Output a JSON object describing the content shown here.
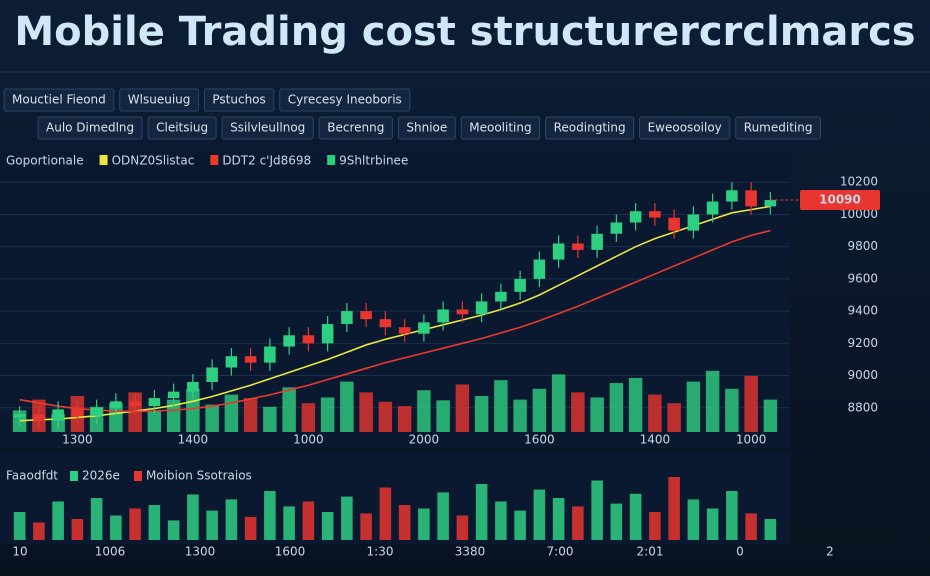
{
  "header": {
    "title": "Mobile Trading cost structurercrclmarcs"
  },
  "toolbar": {
    "row1": [
      "Mouctiel Fieond",
      "Wlsueuiug",
      "Pstuchos",
      "Cyrecesy Ineoboris"
    ],
    "row2": [
      "Aulo Dimedlng",
      "Cleitsiug",
      "Ssilvleullnog",
      "Becrenng",
      "Shnioe",
      "Meooliting",
      "Reodingting",
      "Eweoosoiloy",
      "Rumediting"
    ]
  },
  "chart_data": {
    "type": "candlestick",
    "legend_label": "Goportionale",
    "categories": [
      null,
      null,
      null,
      "1300",
      null,
      null,
      null,
      null,
      null,
      "1400",
      null,
      null,
      null,
      null,
      null,
      "1000",
      null,
      null,
      null,
      null,
      null,
      "2000",
      null,
      null,
      null,
      null,
      null,
      "1600",
      null,
      null,
      null,
      null,
      null,
      "1400",
      null,
      null,
      null,
      null,
      "1000",
      null
    ],
    "open": [
      8740,
      8760,
      8720,
      8790,
      8750,
      8800,
      8840,
      8810,
      8860,
      8900,
      8960,
      9050,
      9120,
      9080,
      9180,
      9250,
      9200,
      9320,
      9400,
      9350,
      9300,
      9260,
      9330,
      9410,
      9380,
      9460,
      9520,
      9600,
      9720,
      9820,
      9780,
      9880,
      9950,
      10020,
      9980,
      9900,
      10000,
      10080,
      10150,
      10050
    ],
    "high": [
      8810,
      8810,
      8840,
      8840,
      8850,
      8890,
      8890,
      8910,
      8950,
      9010,
      9100,
      9170,
      9170,
      9230,
      9300,
      9300,
      9370,
      9450,
      9450,
      9400,
      9350,
      9380,
      9460,
      9460,
      9510,
      9570,
      9650,
      9770,
      9870,
      9870,
      9930,
      10000,
      10070,
      10070,
      10030,
      10050,
      10130,
      10200,
      10200,
      10140
    ],
    "low": [
      8690,
      8670,
      8670,
      8700,
      8700,
      8750,
      8760,
      8760,
      8810,
      8850,
      8910,
      9000,
      9030,
      9030,
      9130,
      9150,
      9150,
      9270,
      9300,
      9250,
      9210,
      9210,
      9280,
      9330,
      9330,
      9410,
      9470,
      9550,
      9670,
      9730,
      9730,
      9830,
      9900,
      9930,
      9850,
      9850,
      9950,
      10030,
      10000,
      10000
    ],
    "close": [
      8760,
      8720,
      8790,
      8750,
      8800,
      8840,
      8810,
      8860,
      8900,
      8960,
      9050,
      9120,
      9080,
      9180,
      9250,
      9200,
      9320,
      9400,
      9350,
      9300,
      9260,
      9330,
      9410,
      9380,
      9460,
      9520,
      9600,
      9720,
      9820,
      9780,
      9880,
      9950,
      10020,
      9980,
      9900,
      10000,
      10080,
      10150,
      10050,
      10090
    ],
    "up_color": "#2fcf82",
    "down_color": "#e8352f",
    "series": [
      {
        "name": "ODNZ0Slistac",
        "color": "#e9e640",
        "values": [
          8720,
          8725,
          8730,
          8740,
          8750,
          8765,
          8780,
          8795,
          8815,
          8840,
          8870,
          8905,
          8940,
          8980,
          9020,
          9060,
          9100,
          9145,
          9190,
          9225,
          9255,
          9285,
          9315,
          9345,
          9375,
          9410,
          9450,
          9500,
          9560,
          9620,
          9680,
          9740,
          9800,
          9850,
          9890,
          9930,
          9970,
          10010,
          10030,
          10050
        ]
      },
      {
        "name": "DDT2 c'Jd8698",
        "color": "#e83a2c",
        "values": [
          8850,
          8830,
          8810,
          8795,
          8785,
          8780,
          8778,
          8780,
          8785,
          8795,
          8810,
          8830,
          8855,
          8880,
          8910,
          8940,
          8975,
          9010,
          9045,
          9080,
          9110,
          9140,
          9170,
          9200,
          9230,
          9265,
          9300,
          9340,
          9385,
          9430,
          9480,
          9530,
          9580,
          9630,
          9680,
          9730,
          9780,
          9830,
          9870,
          9900
        ]
      }
    ],
    "extra_legend": "9Shltrbinee",
    "volume": [
      30,
      45,
      25,
      50,
      35,
      40,
      55,
      30,
      45,
      60,
      38,
      52,
      47,
      35,
      62,
      40,
      48,
      70,
      55,
      42,
      36,
      58,
      44,
      66,
      50,
      72,
      45,
      60,
      80,
      55,
      48,
      68,
      75,
      52,
      40,
      70,
      85,
      60,
      78,
      45
    ],
    "volume_ylim": [
      0,
      100
    ],
    "ylim": [
      8600,
      10400
    ],
    "yticks": [
      8800,
      9000,
      9200,
      9400,
      9600,
      9800,
      10000,
      10200
    ],
    "grid": true,
    "lower_panel": {
      "label": "Faaodfdt",
      "legend": [
        "2026e",
        "Moibion Ssotraios"
      ],
      "values": [
        40,
        25,
        55,
        30,
        60,
        35,
        45,
        50,
        28,
        65,
        42,
        58,
        33,
        70,
        48,
        55,
        40,
        62,
        38,
        75,
        50,
        45,
        68,
        35,
        80,
        55,
        42,
        72,
        60,
        48,
        85,
        52,
        66,
        40,
        90,
        58,
        45,
        70,
        38,
        30
      ],
      "ylim": [
        0,
        100
      ],
      "xlabels": [
        "10",
        "1006",
        "1300",
        "1600",
        "1:30",
        "3380",
        "7:00",
        "2:01",
        "0",
        "2"
      ]
    }
  }
}
